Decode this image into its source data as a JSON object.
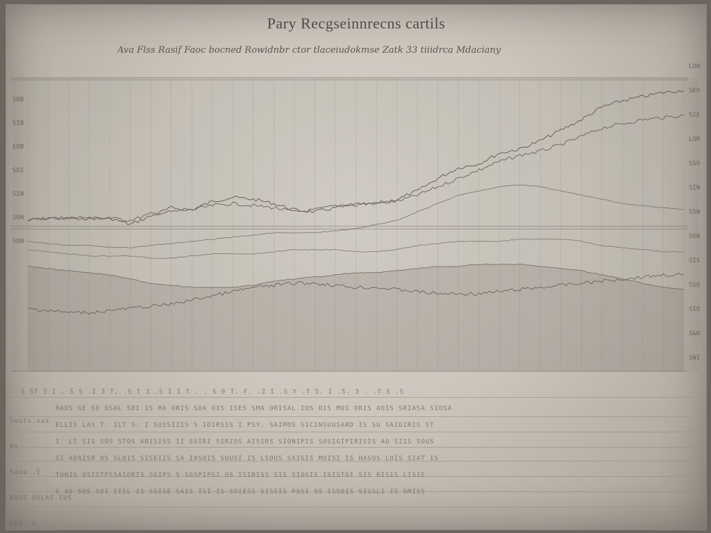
{
  "header": {
    "title": "Pary Recgseinnrecns cartils",
    "subtitle": "Ava Flss Rasif Faoc bocned Rowidnbr ctor tlaceiudokmse Zatk 33 tiiidrca Mdaciany"
  },
  "chart_data": {
    "type": "line",
    "title": "Pary Recgseinnrecns cartils",
    "subtitle": "Ava Flss Rasif Faoc bocned Rowidnbr ctor tlaceiudokmse Zatk 33 tiiidrca Mdaciany",
    "xlabel": "",
    "ylabel": "",
    "x": [
      0,
      1,
      2,
      3,
      4,
      5,
      6,
      7,
      8,
      9,
      10,
      11,
      12,
      13,
      14,
      15,
      16,
      17,
      18,
      19,
      20,
      21,
      22,
      23,
      24,
      25,
      26,
      27,
      28,
      29,
      30,
      31,
      32
    ],
    "ylim": [
      0,
      100
    ],
    "grid": true,
    "left_tick_labels": [
      "SOB",
      "SIB",
      "EOB",
      "SOI",
      "SIN",
      "SON",
      "SON"
    ],
    "right_tick_labels": [
      "LON",
      "SKO",
      "SIE",
      "LON",
      "SSO",
      "SIN",
      "SSN",
      "SON",
      "SIS",
      "SSO",
      "SIO",
      "S&O",
      "SNI"
    ],
    "series": [
      {
        "values": [
          72,
          73,
          73,
          73,
          73,
          70,
          74,
          78,
          77,
          81,
          83,
          82,
          80,
          77,
          76,
          78,
          79,
          80,
          82,
          86,
          92,
          97,
          99,
          104,
          106,
          110,
          115,
          120,
          126,
          129,
          131,
          133,
          134
        ]
      },
      {
        "values": [
          72,
          73,
          73,
          73,
          73,
          72,
          75,
          76,
          77,
          79,
          80,
          79,
          78,
          76,
          77,
          79,
          80,
          80,
          81,
          84,
          88,
          92,
          96,
          100,
          103,
          105,
          108,
          112,
          116,
          118,
          120,
          121,
          122
        ]
      },
      {
        "values": [
          62,
          61,
          60,
          60,
          59,
          59,
          60,
          61,
          62,
          63,
          64,
          65,
          66,
          66,
          66,
          67,
          68,
          70,
          72,
          76,
          80,
          84,
          86,
          88,
          89,
          88,
          86,
          84,
          82,
          80,
          79,
          78,
          77
        ]
      },
      {
        "values": [
          58,
          57,
          56,
          55,
          55,
          55,
          54,
          54,
          55,
          56,
          56,
          56,
          57,
          58,
          58,
          58,
          57,
          57,
          58,
          60,
          61,
          62,
          62,
          62,
          63,
          63,
          63,
          62,
          60,
          59,
          58,
          57,
          57
        ]
      },
      {
        "values": [
          50,
          49,
          48,
          47,
          46,
          44,
          42,
          41,
          40,
          40,
          40,
          41,
          43,
          44,
          45,
          46,
          47,
          47,
          48,
          49,
          50,
          50,
          51,
          51,
          51,
          50,
          49,
          48,
          46,
          44,
          42,
          40,
          39
        ]
      },
      {
        "values": [
          30,
          29,
          28,
          28,
          29,
          30,
          31,
          32,
          34,
          36,
          38,
          40,
          41,
          42,
          42,
          41,
          40,
          40,
          39,
          38,
          37,
          37,
          37,
          38,
          39,
          40,
          41,
          42,
          43,
          44,
          45,
          46,
          46
        ]
      }
    ]
  },
  "table": {
    "left_labels": [
      "Sosts.sus",
      "Ws",
      "Saoa..I",
      "BAOS AOLAS IUS",
      "SAO..S"
    ],
    "rows": [
      "S ST 3 I . S S .I 3 T, .S T 3 .S I I T . . S 9 T. F. .Z I .S Y .T 5. I .S. 3 . .T S .S",
      "RAOS GE SO OSAL SDI IS MA ORIS SOA OIS ISES SMA ORISAL IOS DIS MOI ORIS AOIS SRIASA SIOSA",
      "ELLIS LAS T. ILT S. I SUSSIZIS S IDIRSIS I PSY. SAIMOS SICINSUUSARD IS SU SAIDIRIS ST",
      "I. LI SIS SOS STOS ABISISS II SOIRI SIRIOS AISIRS SIONIPIS SOSIGIPIRISIS AO SIIS SOUS",
      "SI ADAISR OS SLOIS SISEIIS SA IASOIS SOUSI IS LSOUS SAIGIS MOISI IS HASOS LOIS SIAT IS",
      "TUNIS OSISTPSSAIORIS SGIPS S SOSPIPSI OS ISIRISS SIS SIOGIS IGISTGI SIS BISIS LISIE",
      "S AS SOS SOI SISL IS SSISE SAIS ISI IS SOIESS SISSIS PSSI SS ISSOIS SIGSLI IS SMISS"
    ]
  }
}
